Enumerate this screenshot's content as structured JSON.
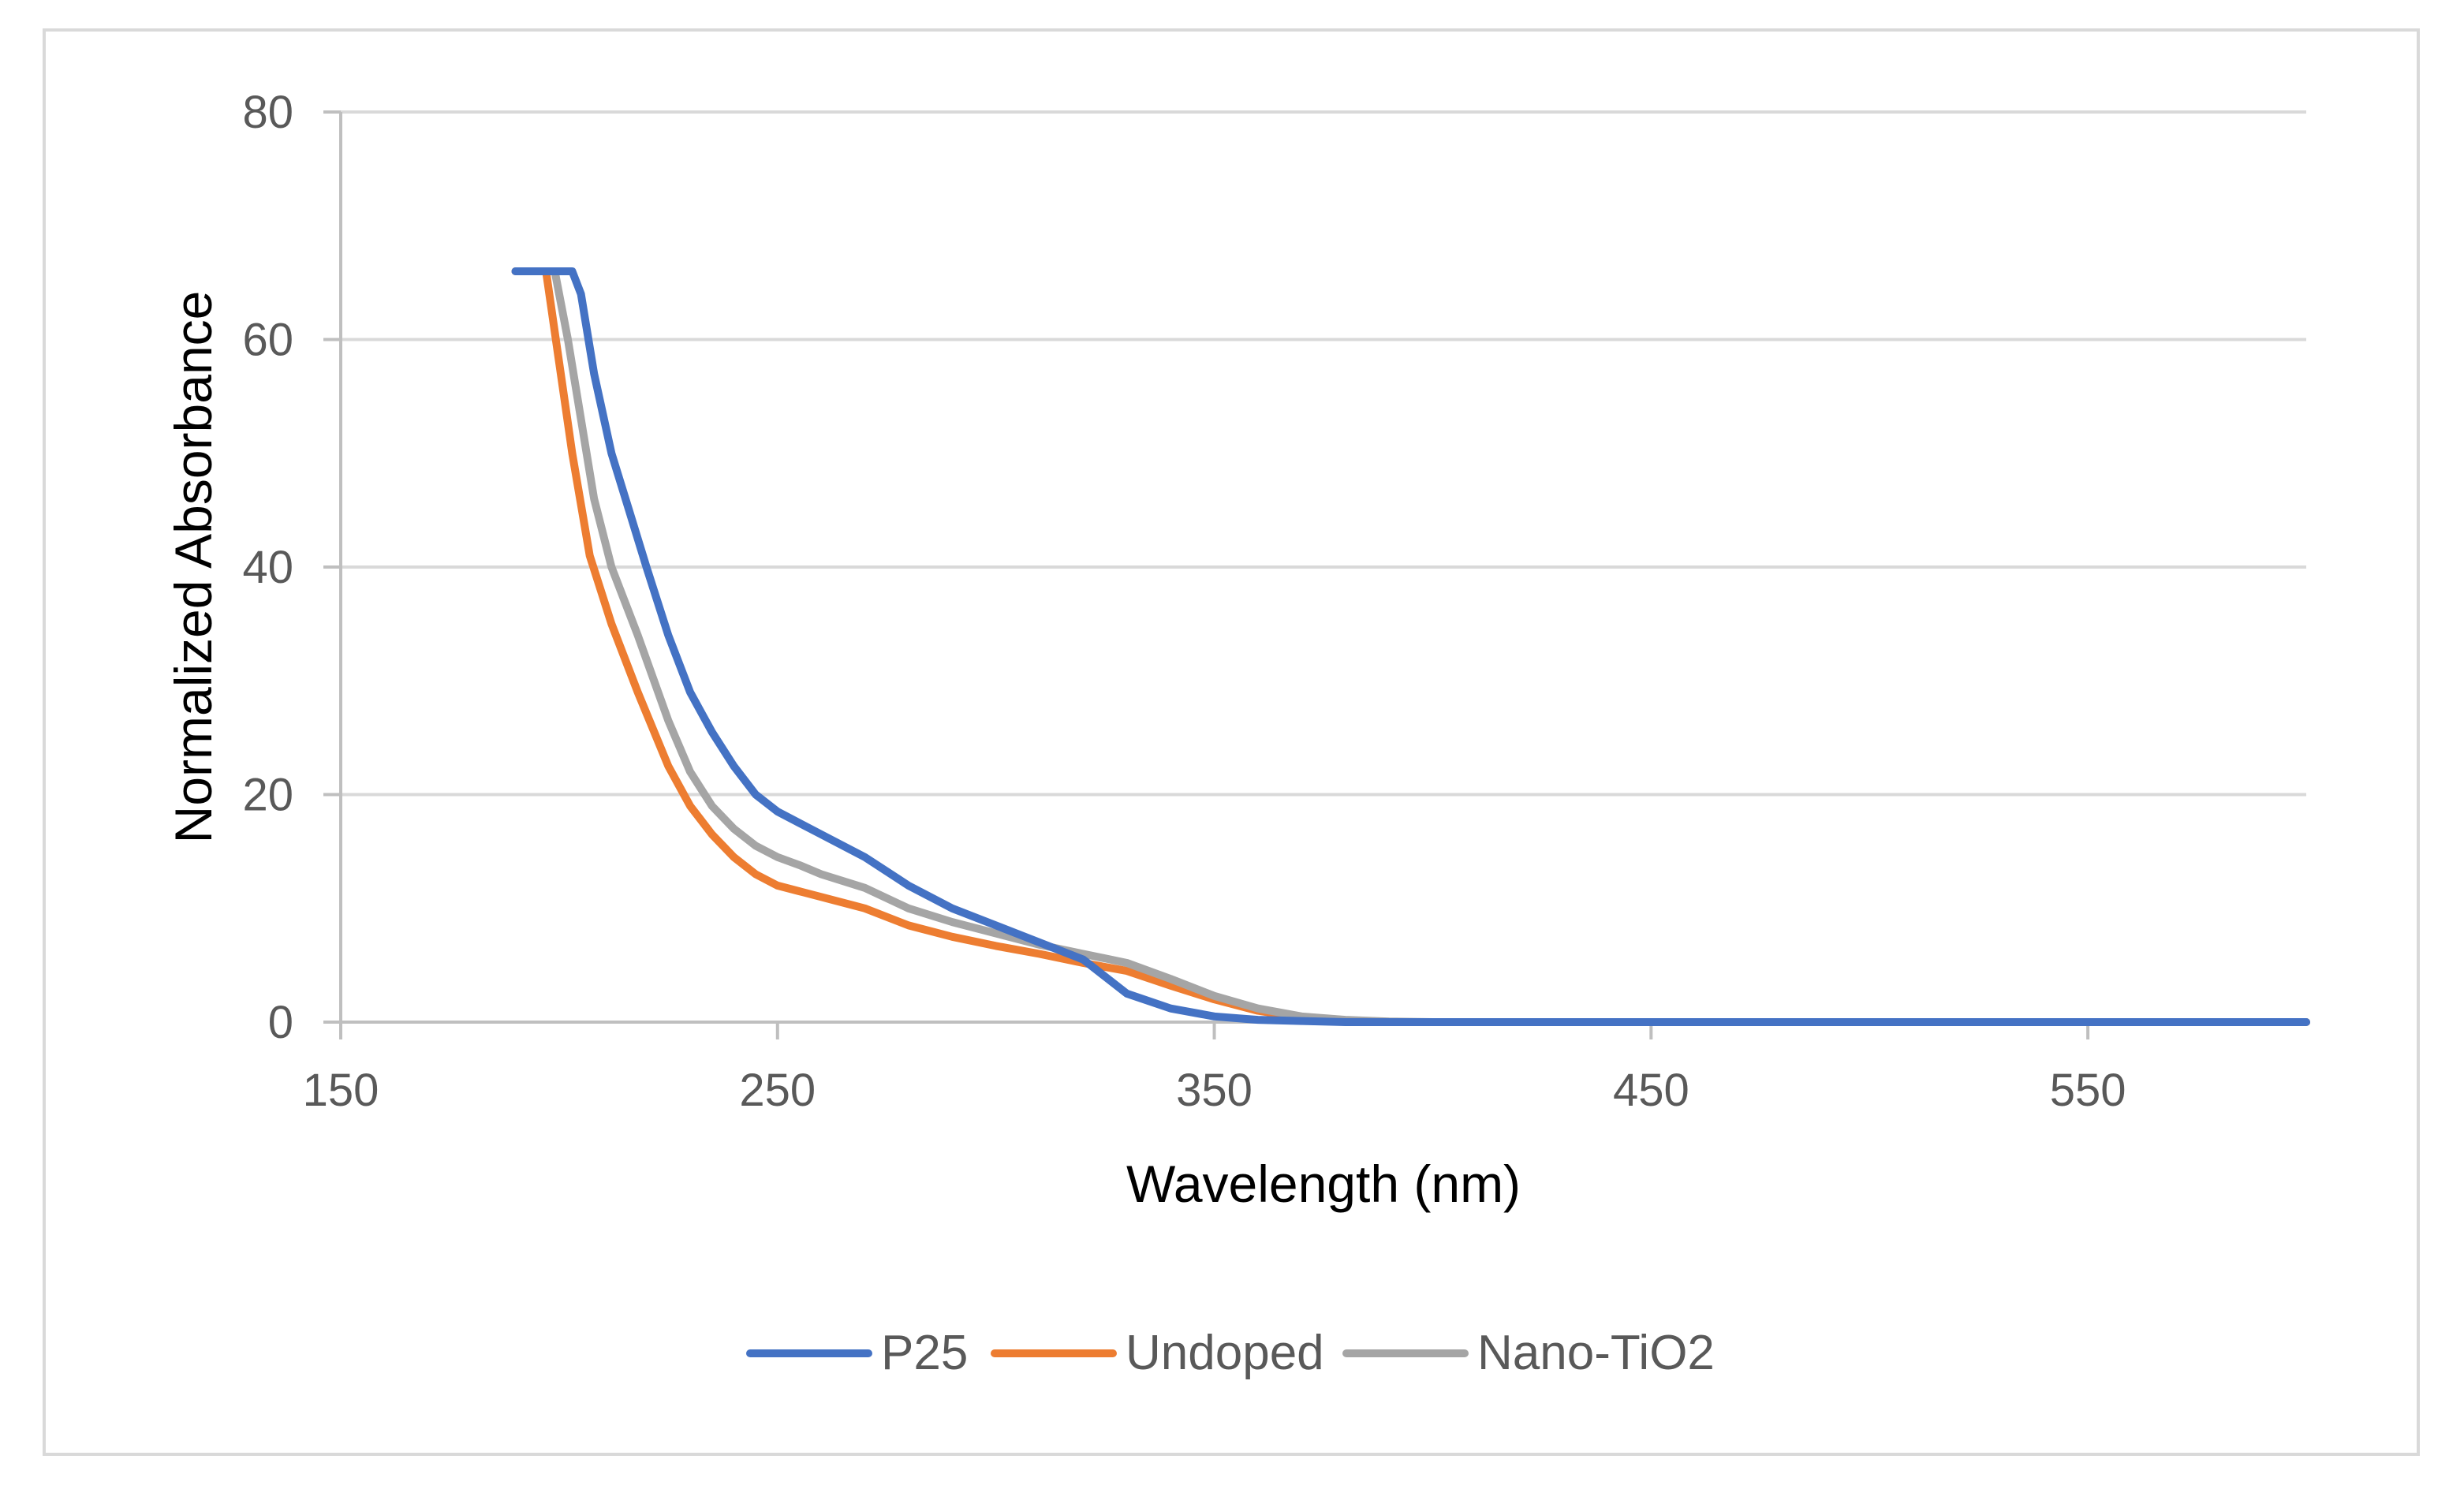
{
  "chart_data": {
    "type": "line",
    "title": "",
    "xlabel": "Wavelength (nm)",
    "ylabel": "Normalized Absorbance",
    "xlim": [
      150,
      600
    ],
    "ylim": [
      0,
      80
    ],
    "xticks": [
      150,
      250,
      350,
      450,
      550
    ],
    "yticks": [
      0,
      20,
      40,
      60,
      80
    ],
    "grid": true,
    "legend_position": "bottom",
    "series": [
      {
        "name": "P25",
        "color": "#4472c4",
        "x": [
          190,
          200,
          203,
          205,
          208,
          212,
          216,
          220,
          225,
          230,
          235,
          240,
          245,
          250,
          255,
          260,
          270,
          280,
          290,
          300,
          310,
          320,
          325,
          330,
          340,
          350,
          360,
          370,
          380,
          390,
          400,
          450,
          500,
          550,
          600
        ],
        "y": [
          66,
          66,
          66,
          64,
          57,
          50,
          45,
          40,
          34,
          29,
          25.5,
          22.5,
          20,
          18.5,
          17.5,
          16.5,
          14.5,
          12,
          10,
          8.5,
          7,
          5.5,
          4,
          2.5,
          1.2,
          0.5,
          0.2,
          0.1,
          0,
          0,
          0,
          0,
          0,
          0,
          0
        ]
      },
      {
        "name": "Undoped",
        "color": "#ed7d31",
        "x": [
          190,
          195,
          197,
          200,
          203,
          207,
          212,
          218,
          225,
          230,
          235,
          240,
          245,
          250,
          255,
          260,
          270,
          280,
          290,
          300,
          310,
          320,
          330,
          340,
          350,
          360,
          370,
          380,
          390,
          400,
          450,
          500,
          550,
          600
        ],
        "y": [
          66,
          66,
          66,
          58,
          50,
          41,
          35,
          29,
          22.5,
          19,
          16.5,
          14.5,
          13,
          12,
          11.5,
          11,
          10,
          8.5,
          7.5,
          6.7,
          6,
          5.2,
          4.5,
          3.2,
          2,
          1,
          0.4,
          0.1,
          0,
          0,
          0,
          0,
          0,
          0
        ]
      },
      {
        "name": "Nano-TiO2",
        "color": "#a5a5a5",
        "x": [
          190,
          196,
          199,
          202,
          205,
          208,
          212,
          218,
          225,
          230,
          235,
          240,
          245,
          250,
          255,
          260,
          270,
          280,
          290,
          300,
          310,
          320,
          330,
          340,
          350,
          360,
          370,
          380,
          390,
          400,
          450,
          500,
          550,
          600
        ],
        "y": [
          66,
          66,
          66,
          60,
          53,
          46,
          40,
          34,
          26.5,
          22,
          19,
          17,
          15.5,
          14.5,
          13.8,
          13,
          11.8,
          10,
          8.8,
          7.8,
          6.8,
          6,
          5.2,
          3.8,
          2.3,
          1.2,
          0.5,
          0.2,
          0.05,
          0,
          0,
          0,
          0,
          0
        ]
      }
    ]
  }
}
